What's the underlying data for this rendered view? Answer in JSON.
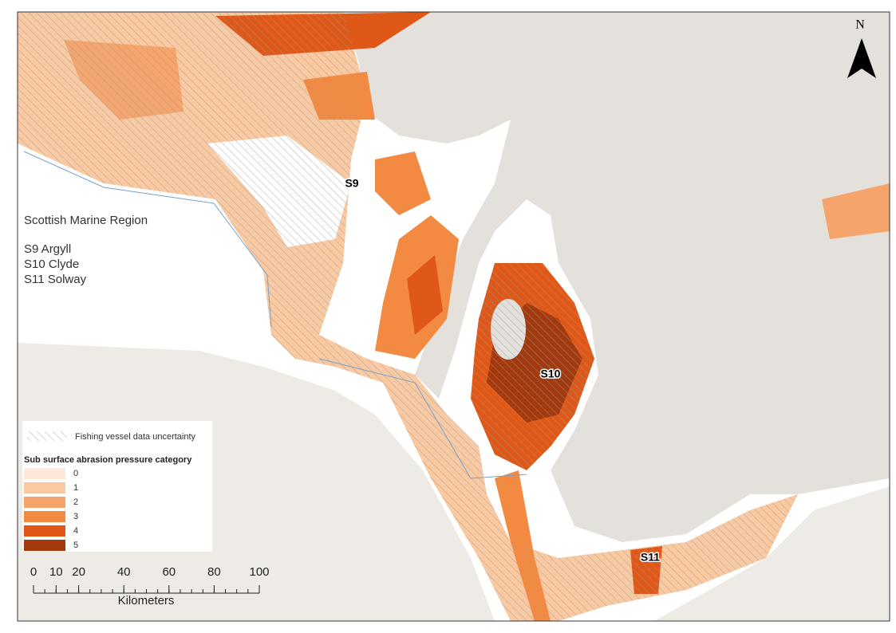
{
  "map": {
    "north": "N",
    "region_labels": [
      "S9",
      "S10",
      "S11"
    ],
    "info": {
      "title": "Scottish Marine Region",
      "regions": [
        "S9 Argyll",
        "S10 Clyde",
        "S11 Solway"
      ]
    },
    "legend": {
      "uncertainty": "Fishing vessel data uncertainty",
      "title": "Sub surface abrasion pressure category",
      "categories": [
        {
          "label": "0",
          "color": "#fde8da"
        },
        {
          "label": "1",
          "color": "#f9c9a2"
        },
        {
          "label": "2",
          "color": "#f5a56c"
        },
        {
          "label": "3",
          "color": "#f38a42"
        },
        {
          "label": "4",
          "color": "#df5817"
        },
        {
          "label": "5",
          "color": "#a3390c"
        }
      ]
    },
    "scale_bar": {
      "ticks": [
        0,
        10,
        20,
        40,
        60,
        80,
        100
      ],
      "unit": "Kilometers"
    }
  }
}
